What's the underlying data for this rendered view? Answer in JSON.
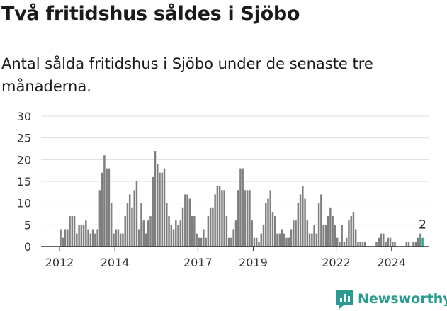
{
  "title": "Två fritidshus såldes i Sjöbo",
  "subtitle": "Antal sålda fritidshus i Sjöbo under de senaste tre månaderna.",
  "brand": {
    "name": "Newsworthy",
    "icon": "bar-chart-logo-icon",
    "color": "#2a9b90"
  },
  "colors": {
    "bar": "#7f7f7f",
    "highlight": "#1fa69a",
    "grid": "#dddddd",
    "axis": "#333333"
  },
  "chart_data": {
    "type": "bar",
    "x_start": "2012-01",
    "x_end": "2025-06",
    "ylim": [
      0,
      30
    ],
    "y_ticks": [
      0,
      5,
      10,
      15,
      20,
      25,
      30
    ],
    "x_ticks": [
      "2012",
      "2014",
      "2017",
      "2019",
      "2022",
      "2024"
    ],
    "grid": true,
    "last_value_label": "2",
    "highlight_last": true,
    "bars": [
      {
        "x": "2012-01",
        "y": 4
      },
      {
        "x": "2012-02",
        "y": 2
      },
      {
        "x": "2012-03",
        "y": 4
      },
      {
        "x": "2012-04",
        "y": 4
      },
      {
        "x": "2012-05",
        "y": 7
      },
      {
        "x": "2012-06",
        "y": 7
      },
      {
        "x": "2012-07",
        "y": 7
      },
      {
        "x": "2012-08",
        "y": 3
      },
      {
        "x": "2012-09",
        "y": 5
      },
      {
        "x": "2012-10",
        "y": 5
      },
      {
        "x": "2012-11",
        "y": 5
      },
      {
        "x": "2012-12",
        "y": 6
      },
      {
        "x": "2013-01",
        "y": 4
      },
      {
        "x": "2013-02",
        "y": 3
      },
      {
        "x": "2013-03",
        "y": 4
      },
      {
        "x": "2013-04",
        "y": 3
      },
      {
        "x": "2013-05",
        "y": 4
      },
      {
        "x": "2013-06",
        "y": 13
      },
      {
        "x": "2013-07",
        "y": 17
      },
      {
        "x": "2013-08",
        "y": 21
      },
      {
        "x": "2013-09",
        "y": 18
      },
      {
        "x": "2013-10",
        "y": 18
      },
      {
        "x": "2013-11",
        "y": 10
      },
      {
        "x": "2013-12",
        "y": 3
      },
      {
        "x": "2014-01",
        "y": 4
      },
      {
        "x": "2014-02",
        "y": 4
      },
      {
        "x": "2014-03",
        "y": 3
      },
      {
        "x": "2014-04",
        "y": 3
      },
      {
        "x": "2014-05",
        "y": 7
      },
      {
        "x": "2014-06",
        "y": 10
      },
      {
        "x": "2014-07",
        "y": 12
      },
      {
        "x": "2014-08",
        "y": 9
      },
      {
        "x": "2014-09",
        "y": 13
      },
      {
        "x": "2014-10",
        "y": 15
      },
      {
        "x": "2014-11",
        "y": 4
      },
      {
        "x": "2014-12",
        "y": 10
      },
      {
        "x": "2015-01",
        "y": 6
      },
      {
        "x": "2015-02",
        "y": 3
      },
      {
        "x": "2015-03",
        "y": 6
      },
      {
        "x": "2015-04",
        "y": 7
      },
      {
        "x": "2015-05",
        "y": 16
      },
      {
        "x": "2015-06",
        "y": 22
      },
      {
        "x": "2015-07",
        "y": 19
      },
      {
        "x": "2015-08",
        "y": 17
      },
      {
        "x": "2015-09",
        "y": 17
      },
      {
        "x": "2015-10",
        "y": 18
      },
      {
        "x": "2015-11",
        "y": 10
      },
      {
        "x": "2015-12",
        "y": 7
      },
      {
        "x": "2016-01",
        "y": 5
      },
      {
        "x": "2016-02",
        "y": 4
      },
      {
        "x": "2016-03",
        "y": 6
      },
      {
        "x": "2016-04",
        "y": 5
      },
      {
        "x": "2016-05",
        "y": 6
      },
      {
        "x": "2016-06",
        "y": 9
      },
      {
        "x": "2016-07",
        "y": 12
      },
      {
        "x": "2016-08",
        "y": 12
      },
      {
        "x": "2016-09",
        "y": 11
      },
      {
        "x": "2016-10",
        "y": 7
      },
      {
        "x": "2016-11",
        "y": 7
      },
      {
        "x": "2016-12",
        "y": 3
      },
      {
        "x": "2017-01",
        "y": 2
      },
      {
        "x": "2017-02",
        "y": 2
      },
      {
        "x": "2017-03",
        "y": 4
      },
      {
        "x": "2017-04",
        "y": 2
      },
      {
        "x": "2017-05",
        "y": 7
      },
      {
        "x": "2017-06",
        "y": 9
      },
      {
        "x": "2017-07",
        "y": 9
      },
      {
        "x": "2017-08",
        "y": 12
      },
      {
        "x": "2017-09",
        "y": 14
      },
      {
        "x": "2017-10",
        "y": 14
      },
      {
        "x": "2017-11",
        "y": 13
      },
      {
        "x": "2017-12",
        "y": 13
      },
      {
        "x": "2018-01",
        "y": 7
      },
      {
        "x": "2018-02",
        "y": 2
      },
      {
        "x": "2018-03",
        "y": 2
      },
      {
        "x": "2018-04",
        "y": 4
      },
      {
        "x": "2018-05",
        "y": 6
      },
      {
        "x": "2018-06",
        "y": 13
      },
      {
        "x": "2018-07",
        "y": 18
      },
      {
        "x": "2018-08",
        "y": 18
      },
      {
        "x": "2018-09",
        "y": 13
      },
      {
        "x": "2018-10",
        "y": 13
      },
      {
        "x": "2018-11",
        "y": 13
      },
      {
        "x": "2018-12",
        "y": 6
      },
      {
        "x": "2019-01",
        "y": 2
      },
      {
        "x": "2019-02",
        "y": 2
      },
      {
        "x": "2019-03",
        "y": 1
      },
      {
        "x": "2019-04",
        "y": 3
      },
      {
        "x": "2019-05",
        "y": 5
      },
      {
        "x": "2019-06",
        "y": 10
      },
      {
        "x": "2019-07",
        "y": 11
      },
      {
        "x": "2019-08",
        "y": 13
      },
      {
        "x": "2019-09",
        "y": 8
      },
      {
        "x": "2019-10",
        "y": 7
      },
      {
        "x": "2019-11",
        "y": 3
      },
      {
        "x": "2019-12",
        "y": 3
      },
      {
        "x": "2020-01",
        "y": 4
      },
      {
        "x": "2020-02",
        "y": 3
      },
      {
        "x": "2020-03",
        "y": 2
      },
      {
        "x": "2020-04",
        "y": 2
      },
      {
        "x": "2020-05",
        "y": 4
      },
      {
        "x": "2020-06",
        "y": 6
      },
      {
        "x": "2020-07",
        "y": 6
      },
      {
        "x": "2020-08",
        "y": 10
      },
      {
        "x": "2020-09",
        "y": 12
      },
      {
        "x": "2020-10",
        "y": 14
      },
      {
        "x": "2020-11",
        "y": 11
      },
      {
        "x": "2020-12",
        "y": 6
      },
      {
        "x": "2021-01",
        "y": 3
      },
      {
        "x": "2021-02",
        "y": 3
      },
      {
        "x": "2021-03",
        "y": 5
      },
      {
        "x": "2021-04",
        "y": 3
      },
      {
        "x": "2021-05",
        "y": 10
      },
      {
        "x": "2021-06",
        "y": 12
      },
      {
        "x": "2021-07",
        "y": 5
      },
      {
        "x": "2021-08",
        "y": 5
      },
      {
        "x": "2021-09",
        "y": 7
      },
      {
        "x": "2021-10",
        "y": 9
      },
      {
        "x": "2021-11",
        "y": 7
      },
      {
        "x": "2021-12",
        "y": 5
      },
      {
        "x": "2022-01",
        "y": 2
      },
      {
        "x": "2022-02",
        "y": 1
      },
      {
        "x": "2022-03",
        "y": 5
      },
      {
        "x": "2022-04",
        "y": 1
      },
      {
        "x": "2022-05",
        "y": 2
      },
      {
        "x": "2022-06",
        "y": 6
      },
      {
        "x": "2022-07",
        "y": 7
      },
      {
        "x": "2022-08",
        "y": 8
      },
      {
        "x": "2022-09",
        "y": 4
      },
      {
        "x": "2022-10",
        "y": 1
      },
      {
        "x": "2022-11",
        "y": 1
      },
      {
        "x": "2022-12",
        "y": 1
      },
      {
        "x": "2023-01",
        "y": 1
      },
      {
        "x": "2023-02",
        "y": 0
      },
      {
        "x": "2023-03",
        "y": 0
      },
      {
        "x": "2023-04",
        "y": 0
      },
      {
        "x": "2023-05",
        "y": 0
      },
      {
        "x": "2023-06",
        "y": 1
      },
      {
        "x": "2023-07",
        "y": 2
      },
      {
        "x": "2023-08",
        "y": 3
      },
      {
        "x": "2023-09",
        "y": 3
      },
      {
        "x": "2023-10",
        "y": 1
      },
      {
        "x": "2023-11",
        "y": 2
      },
      {
        "x": "2023-12",
        "y": 2
      },
      {
        "x": "2024-01",
        "y": 1
      },
      {
        "x": "2024-02",
        "y": 1
      },
      {
        "x": "2024-03",
        "y": 0
      },
      {
        "x": "2024-04",
        "y": 0
      },
      {
        "x": "2024-05",
        "y": 0
      },
      {
        "x": "2024-06",
        "y": 0
      },
      {
        "x": "2024-07",
        "y": 1
      },
      {
        "x": "2024-08",
        "y": 1
      },
      {
        "x": "2024-09",
        "y": 0
      },
      {
        "x": "2024-10",
        "y": 1
      },
      {
        "x": "2024-11",
        "y": 1
      },
      {
        "x": "2024-12",
        "y": 2
      },
      {
        "x": "2025-01",
        "y": 3
      },
      {
        "x": "2025-02",
        "y": 2
      }
    ]
  }
}
